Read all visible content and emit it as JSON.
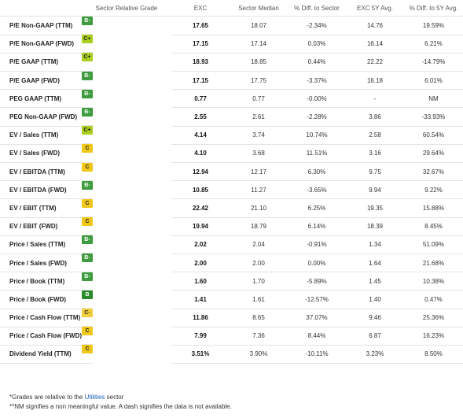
{
  "headers": [
    "",
    "Sector Relative Grade",
    "EXC",
    "Sector Median",
    "% Diff. to Sector",
    "EXC 5Y Avg.",
    "% Diff. to 5Y Avg."
  ],
  "rows": [
    {
      "metric": "P/E Non-GAAP (TTM)",
      "grade": "B-",
      "grade_class": "g-bminus",
      "exc": "17.65",
      "median": "18.07",
      "diff_sector": "-2.34%",
      "avg5y": "14.76",
      "diff_5y": "19.59%"
    },
    {
      "metric": "P/E Non-GAAP (FWD)",
      "grade": "C+",
      "grade_class": "g-cplus",
      "exc": "17.15",
      "median": "17.14",
      "diff_sector": "0.03%",
      "avg5y": "16.14",
      "diff_5y": "6.21%"
    },
    {
      "metric": "P/E GAAP (TTM)",
      "grade": "C+",
      "grade_class": "g-cplus",
      "exc": "18.93",
      "median": "18.85",
      "diff_sector": "0.44%",
      "avg5y": "22.22",
      "diff_5y": "-14.79%"
    },
    {
      "metric": "P/E GAAP (FWD)",
      "grade": "B-",
      "grade_class": "g-bminus",
      "exc": "17.15",
      "median": "17.75",
      "diff_sector": "-3.37%",
      "avg5y": "16.18",
      "diff_5y": "6.01%"
    },
    {
      "metric": "PEG GAAP (TTM)",
      "grade": "B-",
      "grade_class": "g-bminus",
      "exc": "0.77",
      "median": "0.77",
      "diff_sector": "-0.00%",
      "avg5y": "-",
      "diff_5y": "NM"
    },
    {
      "metric": "PEG Non-GAAP (FWD)",
      "grade": "B-",
      "grade_class": "g-bminus",
      "exc": "2.55",
      "median": "2.61",
      "diff_sector": "-2.28%",
      "avg5y": "3.86",
      "diff_5y": "-33.93%"
    },
    {
      "metric": "EV / Sales (TTM)",
      "grade": "C+",
      "grade_class": "g-cplus",
      "exc": "4.14",
      "median": "3.74",
      "diff_sector": "10.74%",
      "avg5y": "2.58",
      "diff_5y": "60.54%"
    },
    {
      "metric": "EV / Sales (FWD)",
      "grade": "C",
      "grade_class": "g-c",
      "exc": "4.10",
      "median": "3.68",
      "diff_sector": "11.51%",
      "avg5y": "3.16",
      "diff_5y": "29.64%"
    },
    {
      "metric": "EV / EBITDA (TTM)",
      "grade": "C",
      "grade_class": "g-c",
      "exc": "12.94",
      "median": "12.17",
      "diff_sector": "6.30%",
      "avg5y": "9.75",
      "diff_5y": "32.67%"
    },
    {
      "metric": "EV / EBITDA (FWD)",
      "grade": "B-",
      "grade_class": "g-bminus",
      "exc": "10.85",
      "median": "11.27",
      "diff_sector": "-3.65%",
      "avg5y": "9.94",
      "diff_5y": "9.22%"
    },
    {
      "metric": "EV / EBIT (TTM)",
      "grade": "C",
      "grade_class": "g-c",
      "exc": "22.42",
      "median": "21.10",
      "diff_sector": "6.25%",
      "avg5y": "19.35",
      "diff_5y": "15.88%"
    },
    {
      "metric": "EV / EBIT (FWD)",
      "grade": "C",
      "grade_class": "g-c",
      "exc": "19.94",
      "median": "18.79",
      "diff_sector": "6.14%",
      "avg5y": "18.39",
      "diff_5y": "8.45%"
    },
    {
      "metric": "Price / Sales (TTM)",
      "grade": "B-",
      "grade_class": "g-bminus",
      "exc": "2.02",
      "median": "2.04",
      "diff_sector": "-0.91%",
      "avg5y": "1.34",
      "diff_5y": "51.09%"
    },
    {
      "metric": "Price / Sales (FWD)",
      "grade": "B-",
      "grade_class": "g-bminus",
      "exc": "2.00",
      "median": "2.00",
      "diff_sector": "0.00%",
      "avg5y": "1.64",
      "diff_5y": "21.68%"
    },
    {
      "metric": "Price / Book (TTM)",
      "grade": "B-",
      "grade_class": "g-bminus",
      "exc": "1.60",
      "median": "1.70",
      "diff_sector": "-5.89%",
      "avg5y": "1.45",
      "diff_5y": "10.38%"
    },
    {
      "metric": "Price / Book (FWD)",
      "grade": "B",
      "grade_class": "g-b",
      "exc": "1.41",
      "median": "1.61",
      "diff_sector": "-12.57%",
      "avg5y": "1.40",
      "diff_5y": "0.47%"
    },
    {
      "metric": "Price / Cash Flow (TTM)",
      "grade": "C-",
      "grade_class": "g-cminus",
      "exc": "11.86",
      "median": "8.65",
      "diff_sector": "37.07%",
      "avg5y": "9.46",
      "diff_5y": "25.36%"
    },
    {
      "metric": "Price / Cash Flow (FWD)",
      "grade": "C",
      "grade_class": "g-c",
      "exc": "7.99",
      "median": "7.36",
      "diff_sector": "8.44%",
      "avg5y": "6.87",
      "diff_5y": "16.23%"
    },
    {
      "metric": "Dividend Yield (TTM)",
      "grade": "C",
      "grade_class": "g-c",
      "exc": "3.51%",
      "median": "3.90%",
      "diff_sector": "-10.11%",
      "avg5y": "3.23%",
      "diff_5y": "8.50%"
    }
  ],
  "footnotes": {
    "grades_prefix": "*Grades are relative to the ",
    "grades_link": "Utilities",
    "grades_suffix": " sector",
    "nm_note": "**NM signifies a non meaningful value. A dash signifies the data is not available."
  }
}
